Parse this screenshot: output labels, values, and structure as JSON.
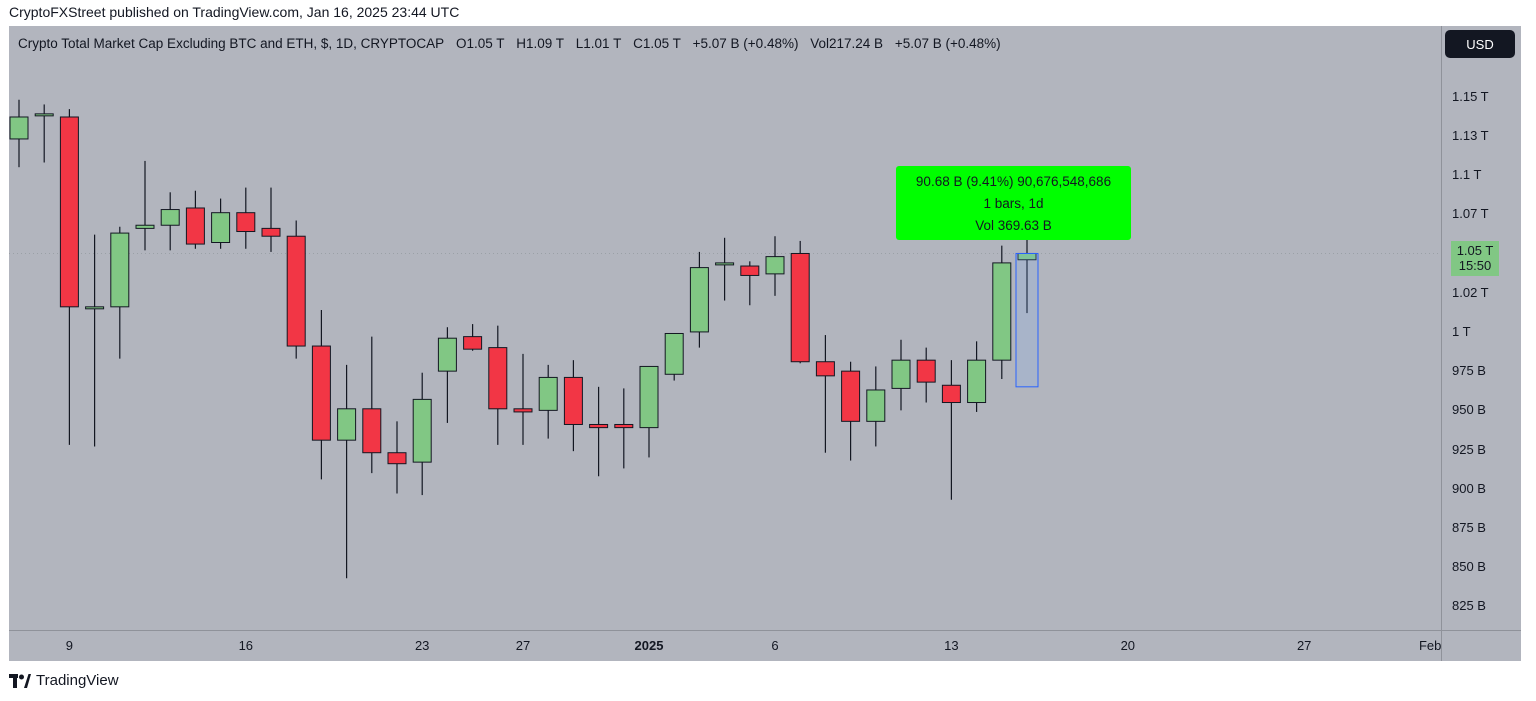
{
  "header": {
    "published": "CryptoFXStreet published on TradingView.com, Jan 16, 2025 23:44 UTC"
  },
  "legend": {
    "symbol": "Crypto Total Market Cap Excluding BTC and ETH, $, 1D, CRYPTOCAP",
    "open": "O1.05 T",
    "high": "H1.09 T",
    "low": "L1.01 T",
    "close": "C1.05 T",
    "change": "+5.07 B (+0.48%)",
    "volume": "Vol217.24 B",
    "vol_change": "+5.07 B (+0.48%)"
  },
  "toolbar": {
    "currency": "USD"
  },
  "last_price": {
    "value": "1.05 T",
    "countdown": "15:50"
  },
  "measure": {
    "line1": "90.68 B (9.41%) 90,676,548,686",
    "line2": "1 bars, 1d",
    "line3": "Vol 369.63 B"
  },
  "footer": {
    "brand": "TradingView"
  },
  "colors": {
    "up": "#81c784",
    "down": "#f23645",
    "measure_bg": "#00ff00",
    "background": "#b2b5be"
  },
  "chart_data": {
    "type": "candlestick",
    "y_unit": "USD",
    "ylim": [
      810,
      1195
    ],
    "y_ticks": [
      825,
      850,
      875,
      900,
      925,
      950,
      975,
      1000,
      1025,
      1050,
      1075,
      1100,
      1125,
      1150
    ],
    "y_tick_labels": [
      "825 B",
      "850 B",
      "875 B",
      "900 B",
      "925 B",
      "950 B",
      "975 B",
      "1 T",
      "1.02 T",
      "1.05 T",
      "1.07 T",
      "1.1 T",
      "1.13 T",
      "1.15 T"
    ],
    "x_tick_labels": [
      {
        "index": 2,
        "label": "9"
      },
      {
        "index": 9,
        "label": "16"
      },
      {
        "index": 16,
        "label": "23"
      },
      {
        "index": 20,
        "label": "27"
      },
      {
        "index": 25,
        "label": "2025",
        "bold": true
      },
      {
        "index": 30,
        "label": "6"
      },
      {
        "index": 37,
        "label": "13"
      },
      {
        "index": 44,
        "label": "20"
      },
      {
        "index": 51,
        "label": "27"
      },
      {
        "index": 56,
        "label": "Feb"
      }
    ],
    "candles": [
      {
        "o": 1123,
        "h": 1148,
        "l": 1105,
        "c": 1137
      },
      {
        "o": 1138,
        "h": 1145,
        "l": 1108,
        "c": 1139
      },
      {
        "o": 1137,
        "h": 1142,
        "l": 928,
        "c": 1016
      },
      {
        "o": 1016,
        "h": 1062,
        "l": 927,
        "c": 1016
      },
      {
        "o": 1016,
        "h": 1067,
        "l": 983,
        "c": 1063
      },
      {
        "o": 1066,
        "h": 1109,
        "l": 1052,
        "c": 1068
      },
      {
        "o": 1068,
        "h": 1089,
        "l": 1052,
        "c": 1078
      },
      {
        "o": 1079,
        "h": 1090,
        "l": 1053,
        "c": 1056
      },
      {
        "o": 1057,
        "h": 1085,
        "l": 1053,
        "c": 1076
      },
      {
        "o": 1076,
        "h": 1092,
        "l": 1053,
        "c": 1064
      },
      {
        "o": 1066,
        "h": 1092,
        "l": 1051,
        "c": 1061
      },
      {
        "o": 1061,
        "h": 1071,
        "l": 983,
        "c": 991
      },
      {
        "o": 991,
        "h": 1014,
        "l": 906,
        "c": 931
      },
      {
        "o": 931,
        "h": 979,
        "l": 843,
        "c": 951
      },
      {
        "o": 951,
        "h": 997,
        "l": 910,
        "c": 923
      },
      {
        "o": 923,
        "h": 943,
        "l": 897,
        "c": 916
      },
      {
        "o": 917,
        "h": 974,
        "l": 896,
        "c": 957
      },
      {
        "o": 975,
        "h": 1003,
        "l": 942,
        "c": 996
      },
      {
        "o": 997,
        "h": 1005,
        "l": 988,
        "c": 989
      },
      {
        "o": 990,
        "h": 1004,
        "l": 928,
        "c": 951
      },
      {
        "o": 951,
        "h": 986,
        "l": 928,
        "c": 949
      },
      {
        "o": 950,
        "h": 979,
        "l": 932,
        "c": 971
      },
      {
        "o": 971,
        "h": 982,
        "l": 924,
        "c": 941
      },
      {
        "o": 941,
        "h": 965,
        "l": 908,
        "c": 939
      },
      {
        "o": 941,
        "h": 964,
        "l": 913,
        "c": 939
      },
      {
        "o": 939,
        "h": 978,
        "l": 920,
        "c": 978
      },
      {
        "o": 973,
        "h": 998,
        "l": 969,
        "c": 999
      },
      {
        "o": 1000,
        "h": 1051,
        "l": 990,
        "c": 1041
      },
      {
        "o": 1044,
        "h": 1060,
        "l": 1020,
        "c": 1044
      },
      {
        "o": 1042,
        "h": 1045,
        "l": 1017,
        "c": 1036
      },
      {
        "o": 1037,
        "h": 1061,
        "l": 1023,
        "c": 1048
      },
      {
        "o": 1050,
        "h": 1058,
        "l": 980,
        "c": 981
      },
      {
        "o": 981,
        "h": 998,
        "l": 923,
        "c": 972
      },
      {
        "o": 975,
        "h": 981,
        "l": 918,
        "c": 943
      },
      {
        "o": 943,
        "h": 978,
        "l": 927,
        "c": 963
      },
      {
        "o": 964,
        "h": 995,
        "l": 950,
        "c": 982
      },
      {
        "o": 982,
        "h": 990,
        "l": 955,
        "c": 968
      },
      {
        "o": 966,
        "h": 982,
        "l": 893,
        "c": 955
      },
      {
        "o": 955,
        "h": 994,
        "l": 949,
        "c": 982
      },
      {
        "o": 982,
        "h": 1055,
        "l": 970,
        "c": 1044
      },
      {
        "o": 1046,
        "h": 1088,
        "l": 1012,
        "c": 1050
      }
    ]
  }
}
